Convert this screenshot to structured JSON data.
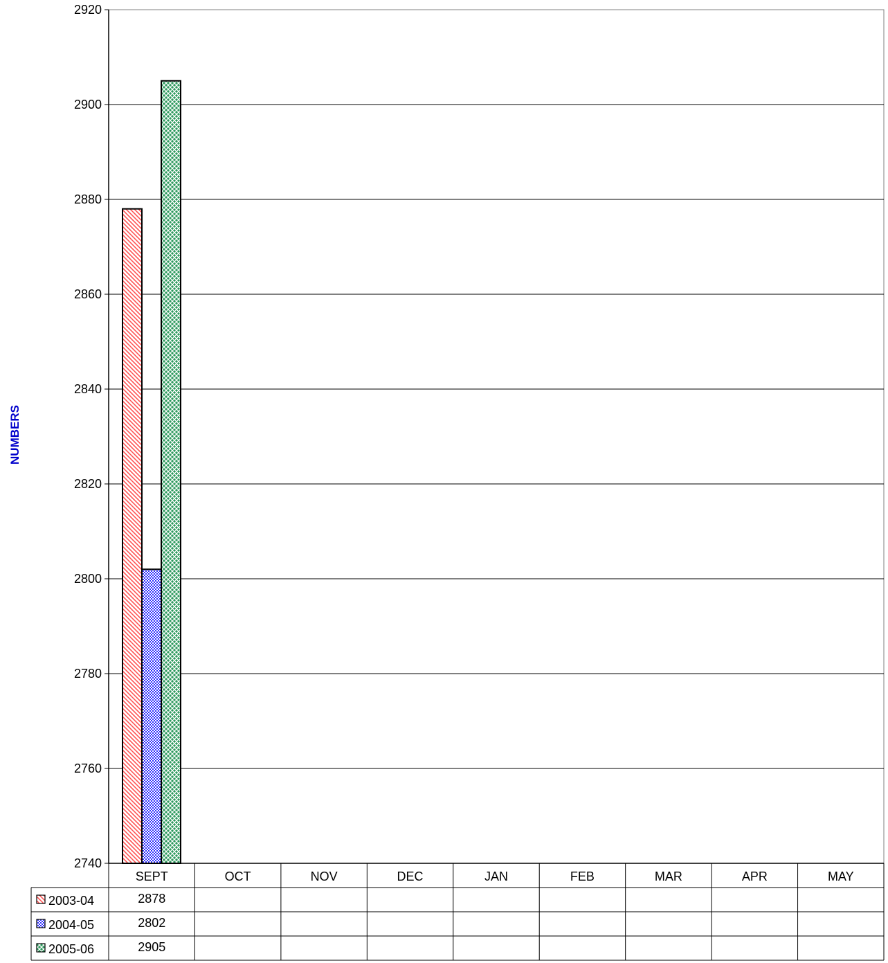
{
  "chart_data": {
    "type": "bar",
    "title": "",
    "xlabel": "",
    "ylabel": "NUMBERS",
    "ylim": [
      2740,
      2920
    ],
    "ytick_step": 20,
    "grid": true,
    "categories": [
      "SEPT",
      "OCT",
      "NOV",
      "DEC",
      "JAN",
      "FEB",
      "MAR",
      "APR",
      "MAY"
    ],
    "series": [
      {
        "name": "2003-04",
        "values": [
          2878,
          null,
          null,
          null,
          null,
          null,
          null,
          null,
          null
        ],
        "color": "#ff6666",
        "pattern": "diagonal-hatch"
      },
      {
        "name": "2004-05",
        "values": [
          2802,
          null,
          null,
          null,
          null,
          null,
          null,
          null,
          null
        ],
        "color": "#3333ff",
        "pattern": "crosshatch"
      },
      {
        "name": "2005-06",
        "values": [
          2905,
          null,
          null,
          null,
          null,
          null,
          null,
          null,
          null
        ],
        "color": "#339966",
        "pattern": "crosshatch"
      }
    ],
    "data_table": true,
    "legend": "data-table-left"
  }
}
